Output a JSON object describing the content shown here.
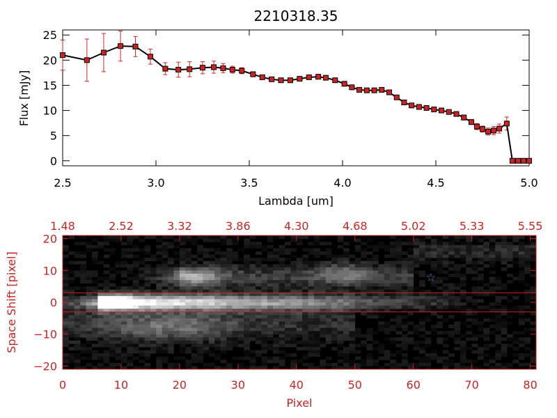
{
  "chart_data": [
    {
      "type": "line",
      "title": "2210318.35",
      "xlabel": "Lambda [um]",
      "ylabel": "Flux [mJy]",
      "xlim": [
        2.5,
        5.0
      ],
      "ylim": [
        -1,
        26
      ],
      "x_ticks": [
        {
          "value": 2.5,
          "label": "2.5"
        },
        {
          "value": 3.0,
          "label": "3.0"
        },
        {
          "value": 3.5,
          "label": "3.5"
        },
        {
          "value": 4.0,
          "label": "4.0"
        },
        {
          "value": 4.5,
          "label": "4.5"
        },
        {
          "value": 5.0,
          "label": "5.0"
        }
      ],
      "y_ticks": [
        {
          "value": 0,
          "label": "0"
        },
        {
          "value": 5,
          "label": "5"
        },
        {
          "value": 10,
          "label": "10"
        },
        {
          "value": 15,
          "label": "15"
        },
        {
          "value": 20,
          "label": "20"
        },
        {
          "value": 25,
          "label": "25"
        }
      ],
      "line_color": "#000000",
      "marker_color": "#cc2222",
      "errorbar_color": "#dd2222",
      "points": [
        [
          2.5,
          21.0,
          3.0
        ],
        [
          2.63,
          20.0,
          4.2
        ],
        [
          2.72,
          21.5,
          3.8
        ],
        [
          2.81,
          22.8,
          3.0
        ],
        [
          2.89,
          22.7,
          2.0
        ],
        [
          2.97,
          20.7,
          1.5
        ],
        [
          3.05,
          18.3,
          1.2
        ],
        [
          3.12,
          18.1,
          1.5
        ],
        [
          3.18,
          18.2,
          1.5
        ],
        [
          3.25,
          18.5,
          1.2
        ],
        [
          3.31,
          18.6,
          1.2
        ],
        [
          3.36,
          18.4,
          0.9
        ],
        [
          3.41,
          18.1,
          0.7
        ],
        [
          3.46,
          17.9,
          0.6
        ],
        [
          3.52,
          17.2,
          0.5
        ],
        [
          3.57,
          16.6,
          0.4
        ],
        [
          3.62,
          16.2,
          0.4
        ],
        [
          3.67,
          16.0,
          0.4
        ],
        [
          3.72,
          16.0,
          0.4
        ],
        [
          3.77,
          16.3,
          0.4
        ],
        [
          3.82,
          16.6,
          0.4
        ],
        [
          3.87,
          16.7,
          0.4
        ],
        [
          3.91,
          16.5,
          0.4
        ],
        [
          3.96,
          16.0,
          0.4
        ],
        [
          4.01,
          15.3,
          0.4
        ],
        [
          4.05,
          14.6,
          0.4
        ],
        [
          4.09,
          14.1,
          0.4
        ],
        [
          4.13,
          14.0,
          0.4
        ],
        [
          4.17,
          14.0,
          0.4
        ],
        [
          4.21,
          14.1,
          0.4
        ],
        [
          4.25,
          13.6,
          0.4
        ],
        [
          4.29,
          12.6,
          0.4
        ],
        [
          4.33,
          11.6,
          0.4
        ],
        [
          4.37,
          11.0,
          0.4
        ],
        [
          4.41,
          10.7,
          0.4
        ],
        [
          4.45,
          10.5,
          0.4
        ],
        [
          4.49,
          10.2,
          0.4
        ],
        [
          4.53,
          10.0,
          0.4
        ],
        [
          4.57,
          9.7,
          0.4
        ],
        [
          4.61,
          9.3,
          0.4
        ],
        [
          4.65,
          8.6,
          0.5
        ],
        [
          4.69,
          7.7,
          0.5
        ],
        [
          4.72,
          6.8,
          0.6
        ],
        [
          4.75,
          6.3,
          0.6
        ],
        [
          4.78,
          5.8,
          0.7
        ],
        [
          4.81,
          6.0,
          0.8
        ],
        [
          4.84,
          6.4,
          0.9
        ],
        [
          4.88,
          7.4,
          1.3
        ],
        [
          4.91,
          0.0,
          0.2
        ],
        [
          4.94,
          0.0,
          0.2
        ],
        [
          4.97,
          0.0,
          0.2
        ],
        [
          5.0,
          0.0,
          0.2
        ]
      ]
    },
    {
      "type": "heatmap",
      "xlabel": "Pixel",
      "ylabel": "Space Shift [pixel]",
      "xlim": [
        0,
        81
      ],
      "ylim": [
        -21,
        21
      ],
      "x_ticks": [
        {
          "value": 0,
          "label": "0"
        },
        {
          "value": 10,
          "label": "10"
        },
        {
          "value": 20,
          "label": "20"
        },
        {
          "value": 30,
          "label": "30"
        },
        {
          "value": 40,
          "label": "40"
        },
        {
          "value": 50,
          "label": "50"
        },
        {
          "value": 60,
          "label": "60"
        },
        {
          "value": 70,
          "label": "70"
        },
        {
          "value": 80,
          "label": "80"
        }
      ],
      "y_ticks": [
        {
          "value": -20,
          "label": "−20"
        },
        {
          "value": -10,
          "label": "−10"
        },
        {
          "value": 0,
          "label": "0"
        },
        {
          "value": 10,
          "label": "10"
        },
        {
          "value": 20,
          "label": "20"
        }
      ],
      "top_axis_labels": [
        "1.48",
        "2.52",
        "3.32",
        "3.86",
        "4.30",
        "4.68",
        "5.02",
        "5.33",
        "5.55"
      ],
      "extraction_band": [
        -3,
        3
      ],
      "band_color": "#cc2222",
      "axis_color": "#cc2222",
      "star": {
        "pixel": 63,
        "shift": 8,
        "color": "#4a7fd0"
      },
      "colormap": "gray"
    }
  ]
}
